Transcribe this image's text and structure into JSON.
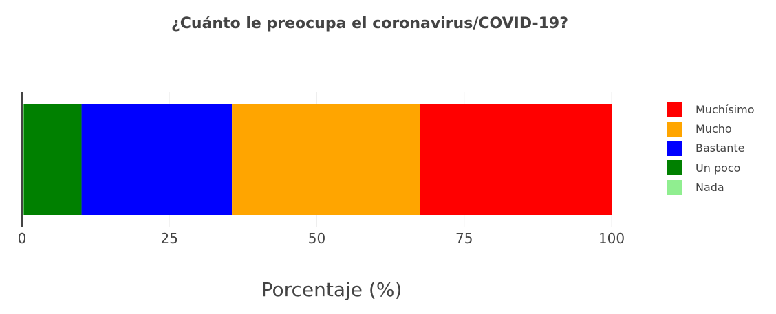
{
  "chart_data": {
    "type": "bar",
    "orientation": "horizontal",
    "stacked": true,
    "title": "¿Cuánto le preocupa el coronavirus/COVID-19?",
    "xlabel": "Porcentaje (%)",
    "ylabel": "",
    "xlim": [
      0,
      100
    ],
    "xticks": [
      "0",
      "25",
      "50",
      "75",
      "100"
    ],
    "grid": true,
    "legend_position": "right",
    "series": [
      {
        "name": "Nada",
        "value": 0.3,
        "color": "#90ee90"
      },
      {
        "name": "Un poco",
        "value": 9.8,
        "color": "#008000"
      },
      {
        "name": "Bastante",
        "value": 25.5,
        "color": "#0000ff"
      },
      {
        "name": "Mucho",
        "value": 31.9,
        "color": "#ffa500"
      },
      {
        "name": "Muchísimo",
        "value": 32.5,
        "color": "#ff0000"
      }
    ],
    "legend_order": [
      "Muchísimo",
      "Mucho",
      "Bastante",
      "Un poco",
      "Nada"
    ]
  }
}
